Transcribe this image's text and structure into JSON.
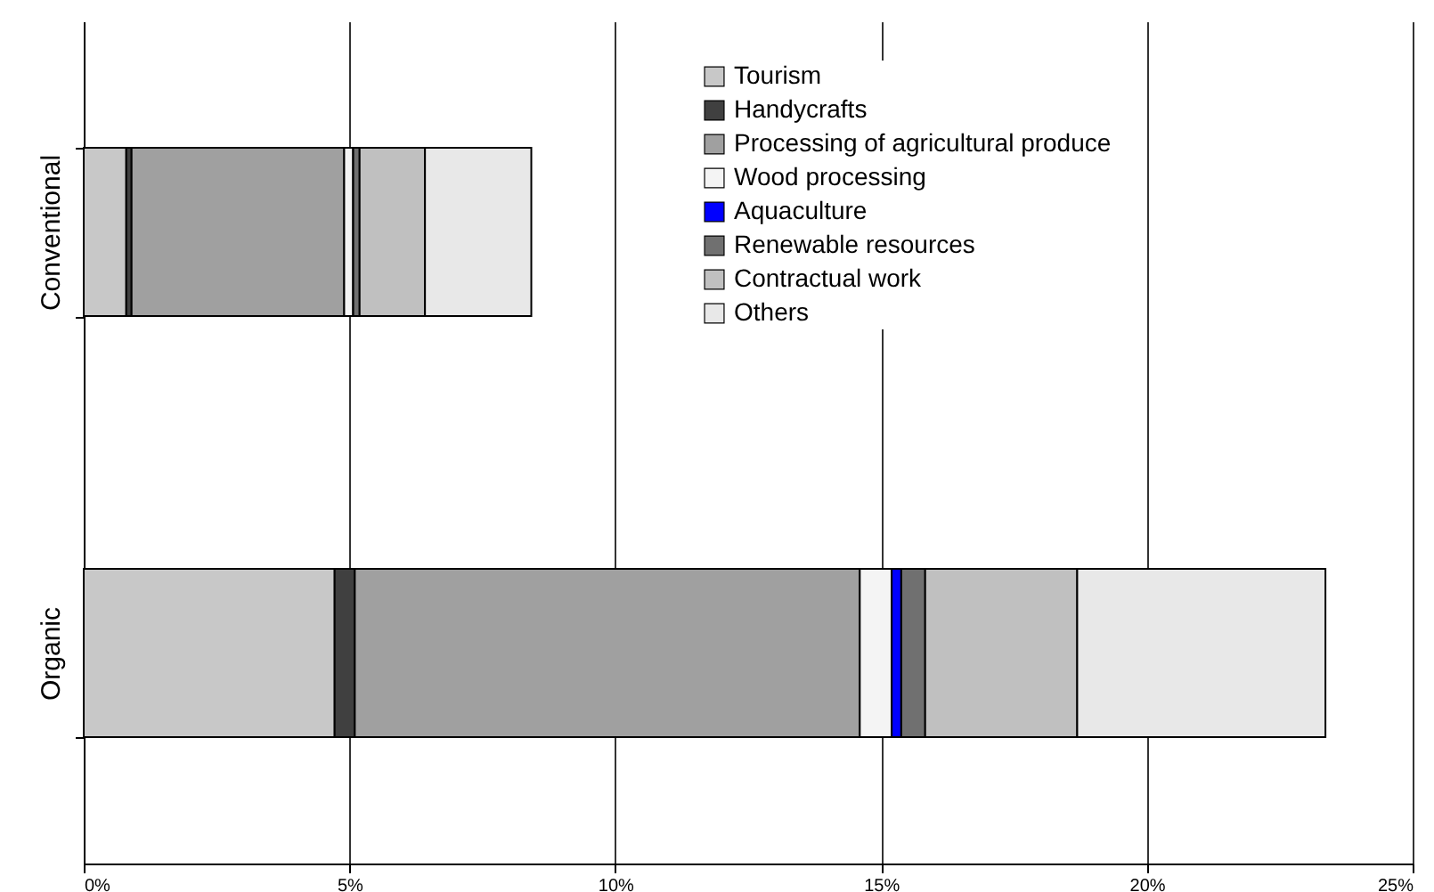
{
  "chart_data": {
    "type": "bar",
    "orientation": "horizontal",
    "stacked": true,
    "categories": [
      "Conventional",
      "Organic"
    ],
    "series": [
      {
        "name": "Tourism",
        "color": "#c8c8c8",
        "values": [
          0.8,
          4.72
        ]
      },
      {
        "name": "Handycrafts",
        "color": "#404040",
        "values": [
          0.1,
          0.38
        ]
      },
      {
        "name": "Processing of agricultural produce",
        "color": "#a0a0a0",
        "values": [
          4.0,
          9.5
        ]
      },
      {
        "name": "Wood processing",
        "color": "#f4f4f4",
        "values": [
          0.17,
          0.6
        ]
      },
      {
        "name": "Aquaculture",
        "color": "#0000ff",
        "values": [
          0,
          0.18
        ]
      },
      {
        "name": "Renewable resources",
        "color": "#707070",
        "values": [
          0.12,
          0.45
        ]
      },
      {
        "name": "Contractual work",
        "color": "#c0c0c0",
        "values": [
          1.23,
          2.86
        ]
      },
      {
        "name": "Others",
        "color": "#e8e8e8",
        "values": [
          2.0,
          4.67
        ]
      }
    ],
    "xlim": [
      0,
      25
    ],
    "xticks": [
      {
        "value": 0,
        "label": "0%"
      },
      {
        "value": 5,
        "label": "5%"
      },
      {
        "value": 10,
        "label": "10%"
      },
      {
        "value": 15,
        "label": "15%"
      },
      {
        "value": 20,
        "label": "20%"
      },
      {
        "value": 25,
        "label": "25%"
      }
    ],
    "grid": "x",
    "legend": "top right"
  }
}
